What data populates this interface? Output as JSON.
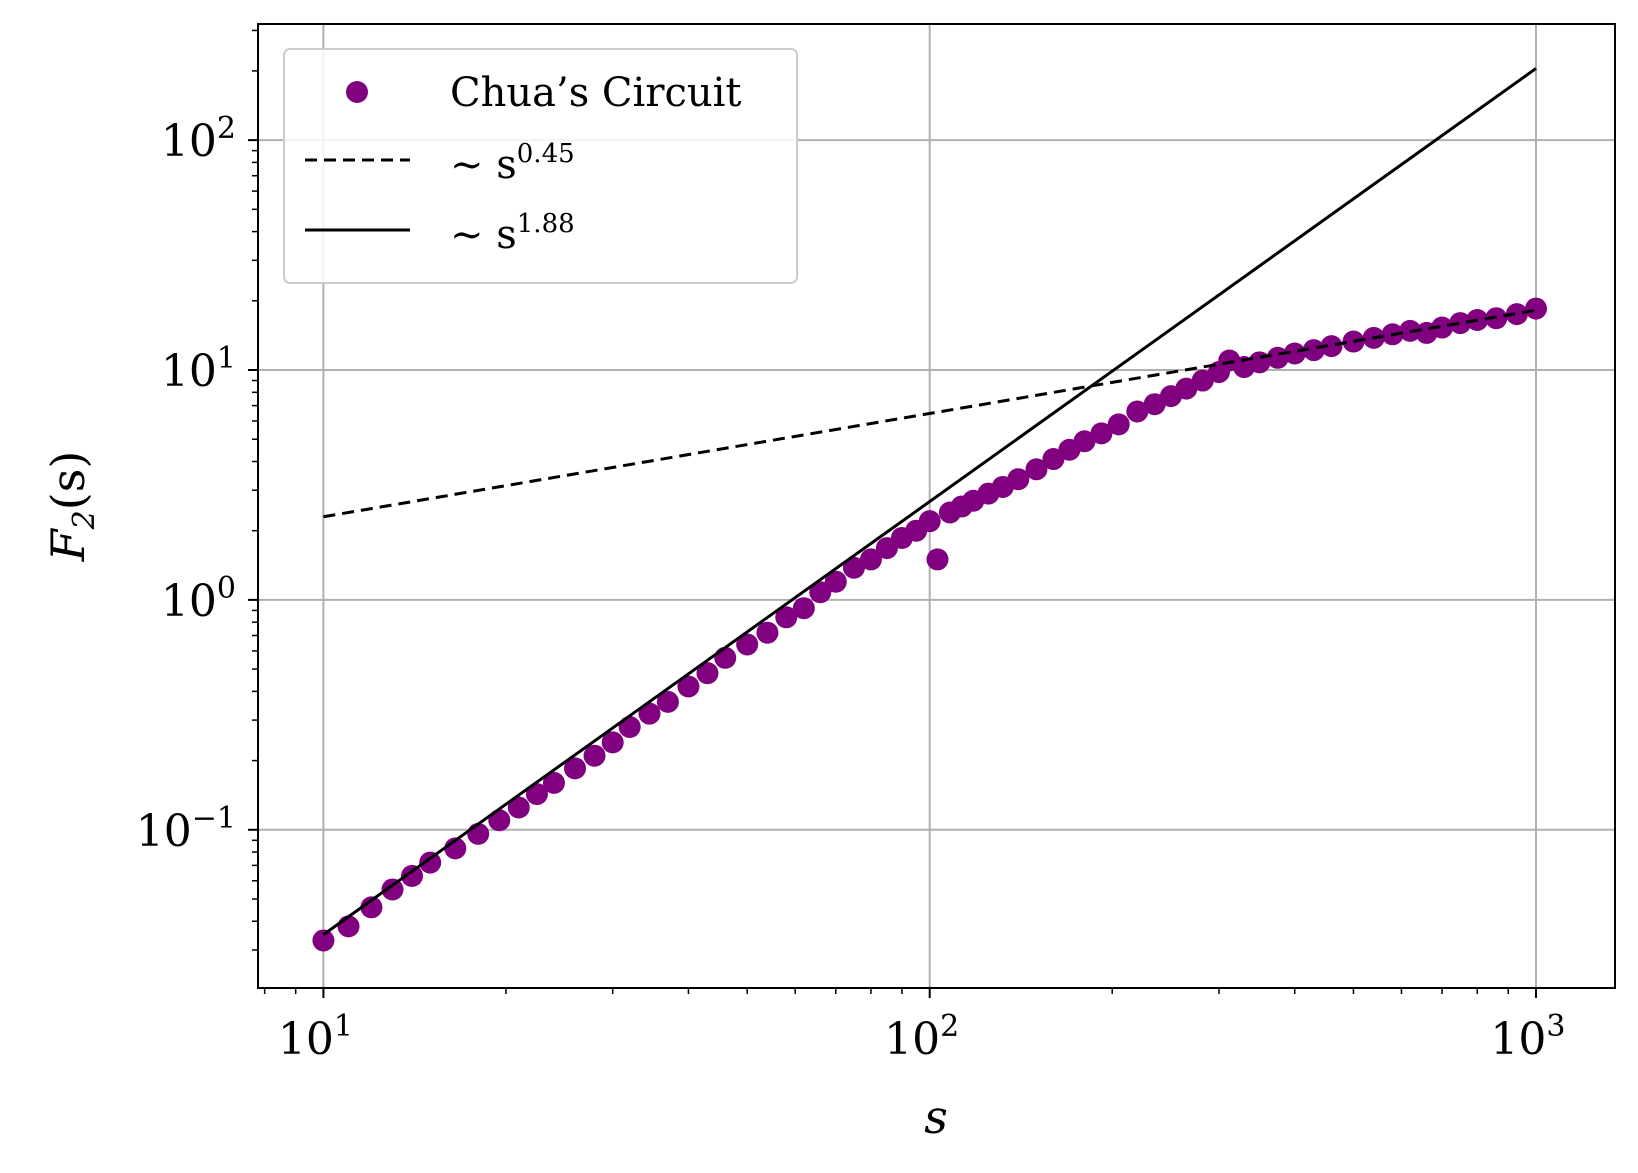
{
  "chart_data": {
    "type": "scatter",
    "xscale": "log",
    "yscale": "log",
    "xlim": [
      7.8,
      1350
    ],
    "ylim": [
      0.0205,
      320
    ],
    "xlabel": "s",
    "ylabel": "F2(s)",
    "ylabel_parts": {
      "base": "F",
      "sub": "2",
      "rest": "(s)"
    },
    "grid": true,
    "legend_position": "top-left",
    "x_ticks": [
      {
        "value": 10,
        "base": "10",
        "exp": "1"
      },
      {
        "value": 100,
        "base": "10",
        "exp": "2"
      },
      {
        "value": 1000,
        "base": "10",
        "exp": "3"
      }
    ],
    "y_ticks": [
      {
        "value": 0.1,
        "base": "10",
        "exp": "−1"
      },
      {
        "value": 1,
        "base": "10",
        "exp": "0"
      },
      {
        "value": 10,
        "base": "10",
        "exp": "1"
      },
      {
        "value": 100,
        "base": "10",
        "exp": "2"
      }
    ],
    "series": [
      {
        "name": "Chua’s Circuit",
        "kind": "scatter",
        "color": "#800080",
        "x": [
          10,
          11,
          12,
          13,
          14,
          15,
          16.5,
          18,
          19.5,
          21,
          22.5,
          24,
          26,
          28,
          30,
          32,
          34.5,
          37,
          40,
          43,
          46,
          50,
          54,
          58,
          62,
          66,
          70,
          75,
          80,
          85,
          90,
          95,
          100,
          103,
          108,
          113,
          118,
          125,
          132,
          140,
          150,
          160,
          170,
          180,
          192,
          205,
          220,
          235,
          250,
          265,
          282,
          300,
          312,
          330,
          350,
          375,
          400,
          430,
          460,
          500,
          540,
          580,
          620,
          660,
          700,
          750,
          800,
          860,
          930,
          1000
        ],
        "y": [
          0.033,
          0.038,
          0.046,
          0.055,
          0.063,
          0.072,
          0.083,
          0.096,
          0.11,
          0.125,
          0.143,
          0.16,
          0.185,
          0.21,
          0.24,
          0.28,
          0.32,
          0.36,
          0.42,
          0.48,
          0.56,
          0.64,
          0.72,
          0.84,
          0.92,
          1.08,
          1.2,
          1.38,
          1.5,
          1.68,
          1.86,
          2.0,
          2.2,
          1.5,
          2.4,
          2.55,
          2.7,
          2.9,
          3.1,
          3.35,
          3.7,
          4.1,
          4.5,
          4.9,
          5.3,
          5.8,
          6.6,
          7.1,
          7.7,
          8.3,
          9.0,
          9.8,
          11.0,
          10.3,
          10.8,
          11.3,
          11.8,
          12.2,
          12.7,
          13.3,
          13.8,
          14.3,
          14.8,
          14.5,
          15.3,
          16.0,
          16.5,
          16.8,
          17.5,
          18.5
        ]
      },
      {
        "name": "∼ s^0.45",
        "label_base": "∼ s",
        "label_exp": "0.45",
        "kind": "line",
        "style": "dashed",
        "color": "#000000",
        "x": [
          10,
          1000
        ],
        "y": [
          2.3,
          18.2
        ]
      },
      {
        "name": "∼ s^1.88",
        "label_base": "∼ s",
        "label_exp": "1.88",
        "kind": "line",
        "style": "solid",
        "color": "#000000",
        "x": [
          10,
          1000
        ],
        "y": [
          0.035,
          205
        ]
      }
    ]
  }
}
